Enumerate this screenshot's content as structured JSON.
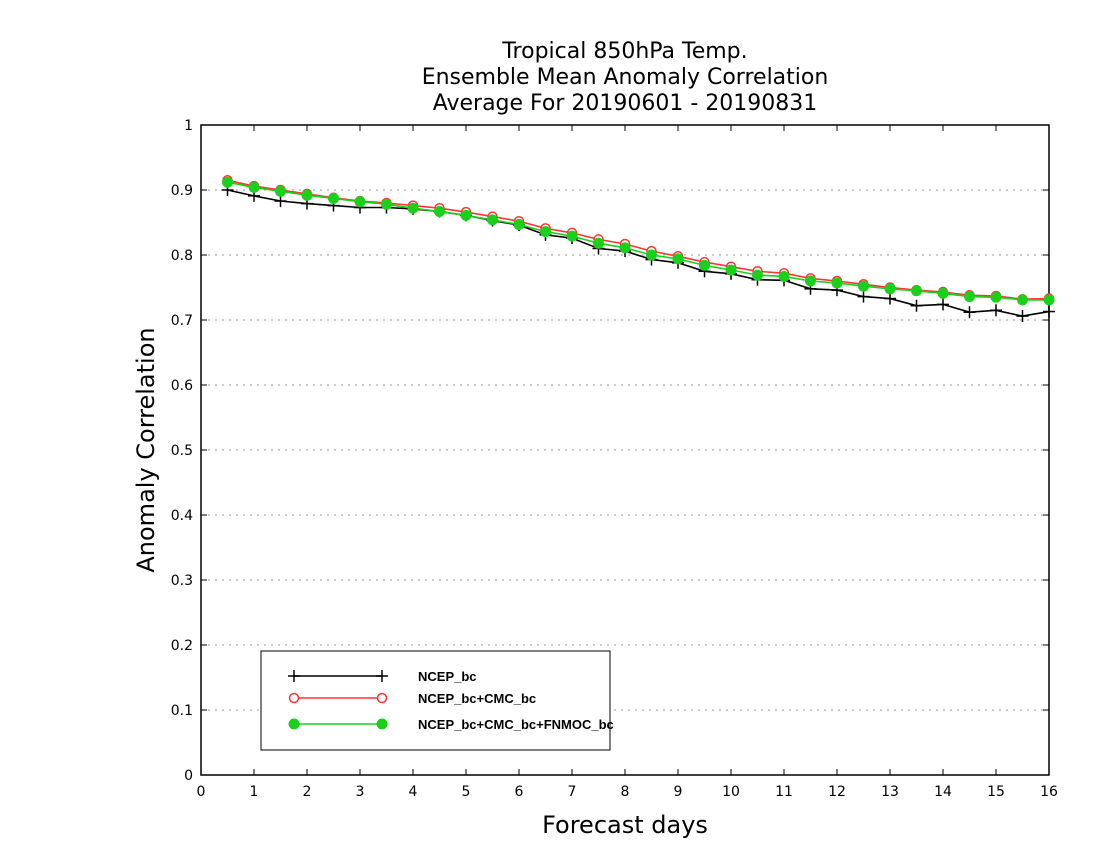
{
  "chart_data": {
    "type": "line",
    "title": "Tropical 850hPa Temp.",
    "subtitle": "Ensemble Mean Anomaly Correlation",
    "subtitle2": "Average For 20190601 - 20190831",
    "xlabel": "Forecast days",
    "ylabel": "Anomaly Correlation",
    "xlim": [
      0,
      16
    ],
    "ylim": [
      0,
      1
    ],
    "xticks": [
      "0",
      "1",
      "2",
      "3",
      "4",
      "5",
      "6",
      "7",
      "8",
      "9",
      "10",
      "11",
      "12",
      "13",
      "14",
      "15",
      "16"
    ],
    "yticks": [
      "0",
      "0.1",
      "0.2",
      "0.3",
      "0.4",
      "0.5",
      "0.6",
      "0.7",
      "0.8",
      "0.9",
      "1"
    ],
    "grid": "horizontal dotted",
    "legend_position": "bottom-left",
    "x": [
      0.5,
      1,
      1.5,
      2,
      2.5,
      3,
      3.5,
      4,
      4.5,
      5,
      5.5,
      6,
      6.5,
      7,
      7.5,
      8,
      8.5,
      9,
      9.5,
      10,
      10.5,
      11,
      11.5,
      12,
      12.5,
      13,
      13.5,
      14,
      14.5,
      15,
      15.5,
      16
    ],
    "series": [
      {
        "name": "NCEP_bc",
        "color": "#000000",
        "marker": "plus",
        "values": [
          0.9,
          0.891,
          0.883,
          0.879,
          0.876,
          0.873,
          0.873,
          0.871,
          0.867,
          0.861,
          0.853,
          0.846,
          0.831,
          0.826,
          0.81,
          0.806,
          0.793,
          0.788,
          0.775,
          0.771,
          0.762,
          0.761,
          0.748,
          0.746,
          0.736,
          0.733,
          0.722,
          0.724,
          0.712,
          0.715,
          0.706,
          0.713
        ]
      },
      {
        "name": "NCEP_bc+CMC_bc",
        "color": "#ff3333",
        "marker": "open-circle",
        "values": [
          0.915,
          0.906,
          0.9,
          0.894,
          0.888,
          0.883,
          0.88,
          0.876,
          0.872,
          0.866,
          0.859,
          0.852,
          0.841,
          0.834,
          0.824,
          0.817,
          0.806,
          0.798,
          0.789,
          0.782,
          0.775,
          0.772,
          0.764,
          0.76,
          0.755,
          0.75,
          0.746,
          0.743,
          0.738,
          0.737,
          0.732,
          0.733
        ]
      },
      {
        "name": "NCEP_bc+CMC_bc+FNMOC_bc",
        "color": "#1bd01b",
        "marker": "filled-circle",
        "values": [
          0.912,
          0.904,
          0.898,
          0.892,
          0.887,
          0.882,
          0.878,
          0.872,
          0.867,
          0.861,
          0.854,
          0.847,
          0.836,
          0.829,
          0.818,
          0.811,
          0.8,
          0.794,
          0.784,
          0.777,
          0.769,
          0.767,
          0.76,
          0.757,
          0.752,
          0.748,
          0.745,
          0.741,
          0.736,
          0.735,
          0.731,
          0.731
        ]
      }
    ]
  }
}
